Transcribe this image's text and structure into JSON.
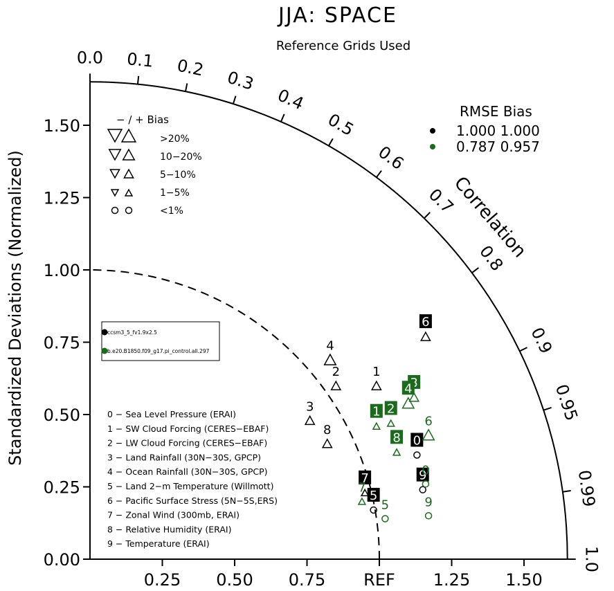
{
  "chart_data": {
    "type": "scatter",
    "chart_kind": "taylor-diagram",
    "title": "JJA: SPACE",
    "subtitle": "Reference Grids Used",
    "ylabel": "Standardized Deviations (Normalized)",
    "correlation_label": "Correlation",
    "ref_label": "REF",
    "std_max": 1.65,
    "y_ticks": [
      {
        "value": 0.0,
        "label": "0.00"
      },
      {
        "value": 0.25,
        "label": "0.25"
      },
      {
        "value": 0.5,
        "label": "0.50"
      },
      {
        "value": 0.75,
        "label": "0.75"
      },
      {
        "value": 1.0,
        "label": "1.00"
      },
      {
        "value": 1.25,
        "label": "1.25"
      },
      {
        "value": 1.5,
        "label": "1.50"
      }
    ],
    "x_ticks": [
      {
        "value": 0.25,
        "label": "0.25"
      },
      {
        "value": 0.5,
        "label": "0.50"
      },
      {
        "value": 0.75,
        "label": "0.75"
      },
      {
        "value": 1.0,
        "label": "REF"
      },
      {
        "value": 1.25,
        "label": "1.25"
      },
      {
        "value": 1.5,
        "label": "1.50"
      }
    ],
    "corr_ticks": [
      {
        "value": 0.0,
        "label": "0.0"
      },
      {
        "value": 0.1,
        "label": "0.1"
      },
      {
        "value": 0.2,
        "label": "0.2"
      },
      {
        "value": 0.3,
        "label": "0.3"
      },
      {
        "value": 0.4,
        "label": "0.4"
      },
      {
        "value": 0.5,
        "label": "0.5"
      },
      {
        "value": 0.6,
        "label": "0.6"
      },
      {
        "value": 0.7,
        "label": "0.7"
      },
      {
        "value": 0.8,
        "label": "0.8"
      },
      {
        "value": 0.9,
        "label": "0.9"
      },
      {
        "value": 0.95,
        "label": "0.95"
      },
      {
        "value": 0.99,
        "label": "0.99"
      },
      {
        "value": 1.0,
        "label": "1.0"
      }
    ],
    "bias_legend": {
      "header": "−  /  +     Bias",
      "rows": [
        {
          "label": ">20%",
          "marker": "triangle",
          "size": 4
        },
        {
          "label": "10−20%",
          "marker": "triangle",
          "size": 3
        },
        {
          "label": "5−10%",
          "marker": "triangle",
          "size": 2
        },
        {
          "label": "1−5%",
          "marker": "triangle",
          "size": 1
        },
        {
          "label": "<1%",
          "marker": "circle",
          "size": 1
        }
      ]
    },
    "rmse_legend": {
      "header": "RMSE  Bias",
      "rows": [
        {
          "text": "1.000 1.000",
          "color": "#000000"
        },
        {
          "text": "0.787 0.957",
          "color": "#1a6b1a"
        }
      ]
    },
    "case_legend": [
      {
        "name": "ccsm3_5_fv1.9x2.5",
        "color": "#000000"
      },
      {
        "name": "b.e20.B1850.f09_g17.pi_control.all.297",
        "color": "#1a6b1a"
      }
    ],
    "variables": [
      "0 − Sea Level Pressure (ERAI)",
      "1 − SW Cloud Forcing (CERES−EBAF)",
      "2 − LW Cloud Forcing (CERES−EBAF)",
      "3 − Land Rainfall (30N−30S, GPCP)",
      "4 − Ocean Rainfall (30N−30S, GPCP)",
      "5 − Land 2−m Temperature (Willmott)",
      "6 − Pacific Surface Stress (5N−5S,ERS)",
      "7 − Zonal Wind (300mb, ERAI)",
      "8 − Relative Humidity (ERAI)",
      "9 − Temperature (ERAI)"
    ],
    "series": [
      {
        "case": "ccsm3_5_fv1.9x2.5",
        "color": "#000000",
        "points": [
          {
            "id": "0",
            "x": 1.13,
            "y": 0.36,
            "marker": "circle",
            "size": 1,
            "boxed": true
          },
          {
            "id": "1",
            "x": 0.99,
            "y": 0.6,
            "marker": "triangle",
            "size": 2,
            "boxed": false
          },
          {
            "id": "2",
            "x": 0.85,
            "y": 0.6,
            "marker": "triangle",
            "size": 2,
            "boxed": false
          },
          {
            "id": "3",
            "x": 0.76,
            "y": 0.48,
            "marker": "triangle",
            "size": 2,
            "boxed": false
          },
          {
            "id": "4",
            "x": 0.83,
            "y": 0.69,
            "marker": "triangle",
            "size": 3,
            "boxed": false
          },
          {
            "id": "5",
            "x": 0.98,
            "y": 0.17,
            "marker": "circle",
            "size": 1,
            "boxed": true
          },
          {
            "id": "6",
            "x": 1.16,
            "y": 0.77,
            "marker": "triangle",
            "size": 2,
            "boxed": true
          },
          {
            "id": "7",
            "x": 0.95,
            "y": 0.23,
            "marker": "triangle",
            "size": 1,
            "boxed": true
          },
          {
            "id": "8",
            "x": 0.82,
            "y": 0.4,
            "marker": "triangle",
            "size": 2,
            "boxed": false
          },
          {
            "id": "9",
            "x": 1.15,
            "y": 0.24,
            "marker": "circle",
            "size": 1,
            "boxed": true
          }
        ]
      },
      {
        "case": "b.e20.B1850.f09_g17.pi_control.all.297",
        "color": "#1a6b1a",
        "points": [
          {
            "id": "1",
            "x": 0.99,
            "y": 0.46,
            "marker": "triangle",
            "size": 1,
            "boxed": true
          },
          {
            "id": "2",
            "x": 1.04,
            "y": 0.47,
            "marker": "triangle",
            "size": 1,
            "boxed": true
          },
          {
            "id": "3",
            "x": 1.12,
            "y": 0.56,
            "marker": "triangle",
            "size": 2,
            "boxed": true
          },
          {
            "id": "4",
            "x": 1.1,
            "y": 0.54,
            "marker": "triangle",
            "size": 3,
            "boxed": true
          },
          {
            "id": "5",
            "x": 1.02,
            "y": 0.14,
            "marker": "circle",
            "size": 1,
            "boxed": false
          },
          {
            "id": "6",
            "x": 1.17,
            "y": 0.43,
            "marker": "triangle",
            "size": 3,
            "boxed": false
          },
          {
            "id": "7",
            "x": 0.94,
            "y": 0.2,
            "marker": "triangle",
            "size": 1,
            "boxed": false
          },
          {
            "id": "8",
            "x": 1.06,
            "y": 0.37,
            "marker": "triangle",
            "size": 1,
            "boxed": true
          },
          {
            "id": "9",
            "x": 1.17,
            "y": 0.15,
            "marker": "circle",
            "size": 1,
            "boxed": false
          },
          {
            "id": "0",
            "x": 1.16,
            "y": 0.26,
            "marker": "circle",
            "size": 1,
            "boxed": false
          }
        ]
      }
    ]
  }
}
